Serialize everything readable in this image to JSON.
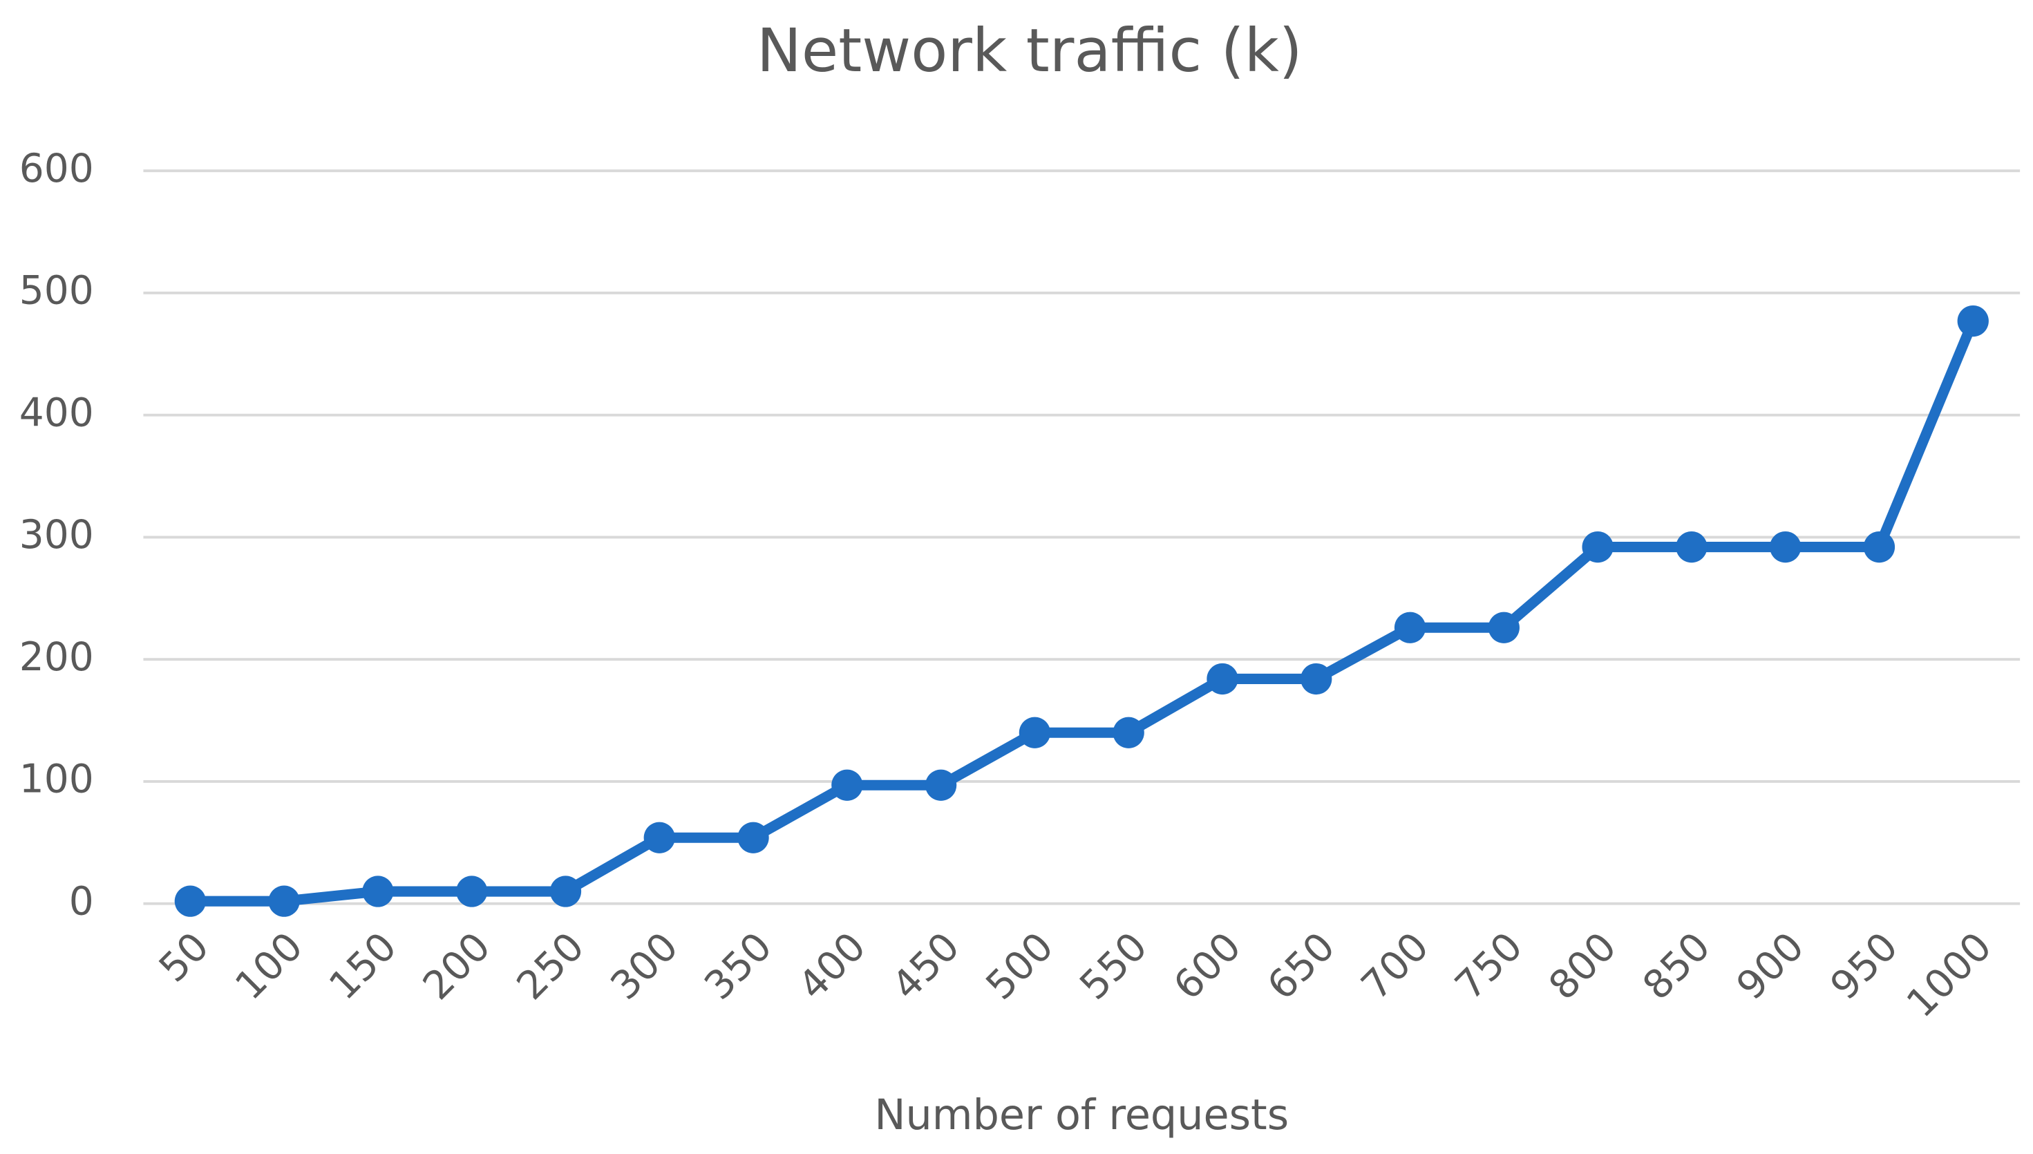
{
  "chart_data": {
    "type": "line",
    "title": "Network traffic (k)",
    "x_label": "Number of requests",
    "categories": [
      "50",
      "100",
      "150",
      "200",
      "250",
      "300",
      "350",
      "400",
      "450",
      "500",
      "550",
      "600",
      "650",
      "700",
      "750",
      "800",
      "850",
      "900",
      "950",
      "1000"
    ],
    "series": [
      {
        "name": "Network traffic (k)",
        "color": "#1f6fc5",
        "values": [
          2,
          2,
          10,
          10,
          10,
          54,
          54,
          97,
          97,
          140,
          140,
          184,
          184,
          226,
          226,
          292,
          292,
          292,
          292,
          477
        ]
      }
    ],
    "ylim": [
      0,
      600
    ],
    "yticks": [
      0,
      100,
      200,
      300,
      400,
      500,
      600
    ],
    "grid": true
  }
}
